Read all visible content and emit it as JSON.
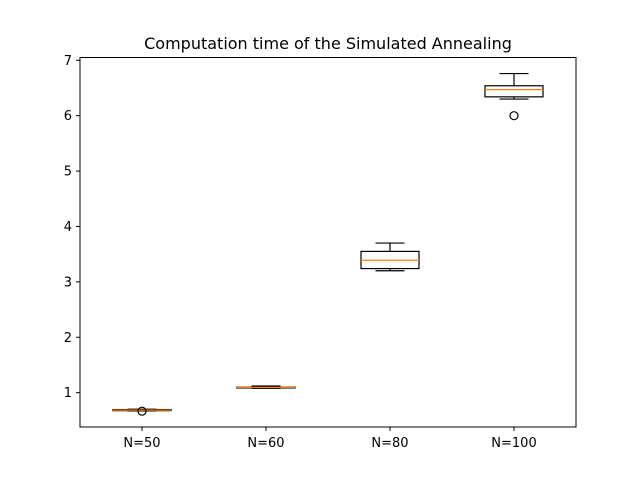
{
  "chart_data": {
    "type": "box",
    "title": "Computation time of the Simulated Annealing",
    "xlabel": "",
    "ylabel": "",
    "categories": [
      "N=50",
      "N=60",
      "N=80",
      "N=100"
    ],
    "yticks": [
      1,
      2,
      3,
      4,
      5,
      6,
      7
    ],
    "ylim": [
      0.38,
      7.05
    ],
    "grid": false,
    "boxes": [
      {
        "whisker_low": 0.67,
        "q1": 0.675,
        "median": 0.685,
        "q3": 0.695,
        "whisker_high": 0.7,
        "fliers": [
          0.665
        ]
      },
      {
        "whisker_low": 1.08,
        "q1": 1.085,
        "median": 1.095,
        "q3": 1.1,
        "whisker_high": 1.12,
        "fliers": []
      },
      {
        "whisker_low": 3.2,
        "q1": 3.24,
        "median": 3.39,
        "q3": 3.55,
        "whisker_high": 3.7,
        "fliers": []
      },
      {
        "whisker_low": 6.3,
        "q1": 6.34,
        "median": 6.47,
        "q3": 6.54,
        "whisker_high": 6.76,
        "fliers": [
          6.0
        ]
      }
    ],
    "colors": {
      "box": "#000000",
      "median": "#ff7f0e"
    }
  }
}
